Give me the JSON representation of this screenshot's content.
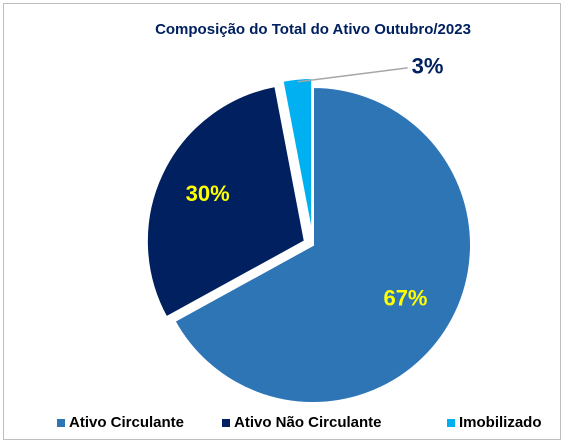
{
  "chart_data": {
    "type": "pie",
    "title": "Composição do Total do Ativo Outubro/2023",
    "categories": [
      "Ativo Circulante",
      "Ativo Não Circulante",
      "Imobilizado"
    ],
    "values": [
      67,
      30,
      3
    ],
    "value_labels": [
      "67%",
      "30%",
      "3%"
    ],
    "colors": [
      "#2e75b6",
      "#002060",
      "#00b0f0"
    ],
    "label_colors": [
      "#ffff00",
      "#ffff00",
      "#002060"
    ],
    "legend": "bottom"
  }
}
